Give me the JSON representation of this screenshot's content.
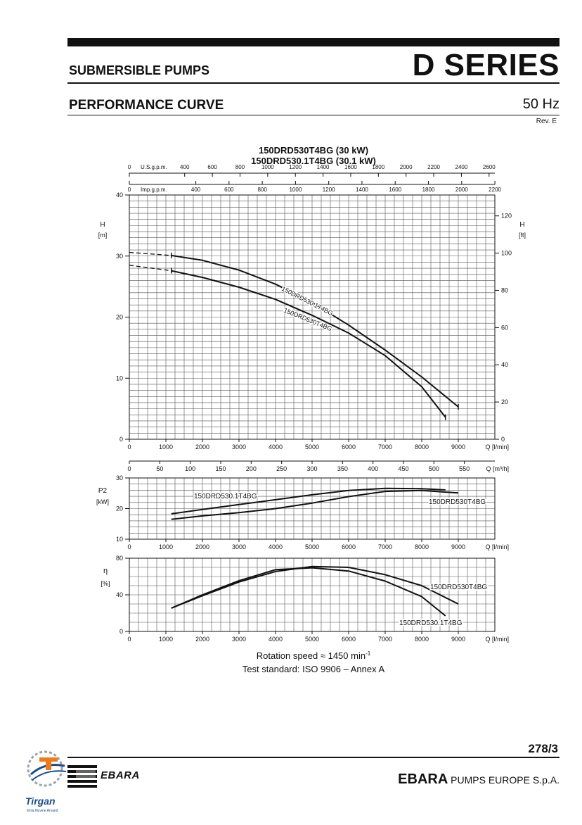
{
  "header": {
    "series": "D SERIES",
    "product_group": "SUBMERSIBLE PUMPS",
    "section": "PERFORMANCE CURVE",
    "frequency": "50 Hz",
    "revision": "Rev. E"
  },
  "chart_data": {
    "type": "line",
    "title_lines": [
      "150DRD530T4BG (30 kW)",
      "150DRD530.1T4BG (30.1 kW)"
    ],
    "top_axes": {
      "us_gpm_label": "U.S.g.p.m.",
      "us_gpm_ticks": [
        0,
        400,
        600,
        800,
        1000,
        1200,
        1400,
        1600,
        1800,
        2000,
        2200,
        2400,
        2600
      ],
      "us_gpm_first_label": "0",
      "imp_gpm_label": "Imp.g.p.m.",
      "imp_gpm_ticks": [
        0,
        400,
        600,
        800,
        1000,
        1200,
        1400,
        1600,
        1800,
        2000,
        2200
      ],
      "imp_gpm_first_label": "0"
    },
    "flow_axis": {
      "label": "Q [l/min]",
      "range": [
        0,
        10000
      ],
      "ticks": [
        0,
        1000,
        2000,
        3000,
        4000,
        5000,
        6000,
        7000,
        8000,
        9000
      ]
    },
    "m3h_axis": {
      "label": "Q [m³/h]",
      "ticks": [
        0,
        50,
        100,
        150,
        200,
        250,
        300,
        350,
        400,
        450,
        500,
        550
      ]
    },
    "head_panel": {
      "ylabel_left": [
        "H",
        "[m]"
      ],
      "ylabel_right": [
        "H",
        "[ft]"
      ],
      "ylim": [
        0,
        40
      ],
      "yticks": [
        0,
        10,
        20,
        30,
        40
      ],
      "ft_ticks": [
        0,
        20,
        40,
        60,
        80,
        100,
        120
      ],
      "series": [
        {
          "name": "150DRD530.1T4BG",
          "dashed": [
            [
              0,
              30.6
            ],
            [
              1150,
              30.1
            ]
          ],
          "points": [
            [
              1150,
              30.1
            ],
            [
              2000,
              29.3
            ],
            [
              3000,
              27.7
            ],
            [
              4000,
              25.4
            ],
            [
              5000,
              22.4
            ],
            [
              6000,
              18.7
            ],
            [
              7000,
              14.6
            ],
            [
              8000,
              10.2
            ],
            [
              9000,
              5.3
            ]
          ]
        },
        {
          "name": "150DRD530T4BG",
          "dashed": [
            [
              0,
              28.5
            ],
            [
              1150,
              27.6
            ]
          ],
          "points": [
            [
              1150,
              27.6
            ],
            [
              2000,
              26.5
            ],
            [
              3000,
              24.9
            ],
            [
              4000,
              22.9
            ],
            [
              5000,
              20.3
            ],
            [
              6000,
              17.4
            ],
            [
              7000,
              13.7
            ],
            [
              8000,
              8.6
            ],
            [
              8650,
              3.6
            ]
          ]
        }
      ]
    },
    "power_panel": {
      "ylabel": [
        "P2",
        "[kW]"
      ],
      "ylim": [
        10,
        30
      ],
      "yticks": [
        10,
        20,
        30
      ],
      "series": [
        {
          "name": "150DRD530.1T4BG",
          "points": [
            [
              1150,
              18.3
            ],
            [
              2000,
              19.7
            ],
            [
              3000,
              21.3
            ],
            [
              4000,
              22.9
            ],
            [
              5000,
              24.5
            ],
            [
              6000,
              25.9
            ],
            [
              7000,
              26.6
            ],
            [
              8000,
              26.5
            ],
            [
              8650,
              26.1
            ]
          ]
        },
        {
          "name": "150DRD530T4BG",
          "points": [
            [
              1150,
              16.5
            ],
            [
              2000,
              17.6
            ],
            [
              3000,
              18.7
            ],
            [
              4000,
              20.0
            ],
            [
              5000,
              21.8
            ],
            [
              6000,
              23.9
            ],
            [
              7000,
              25.6
            ],
            [
              8000,
              25.9
            ],
            [
              9000,
              25.1
            ]
          ]
        }
      ]
    },
    "efficiency_panel": {
      "ylabel": [
        "η",
        "[%]"
      ],
      "ylim": [
        0,
        80
      ],
      "yticks": [
        0,
        40,
        80
      ],
      "series": [
        {
          "name": "150DRD530T4BG",
          "points": [
            [
              1150,
              25.5
            ],
            [
              2000,
              39
            ],
            [
              3000,
              54
            ],
            [
              4000,
              65.5
            ],
            [
              5000,
              71
            ],
            [
              6000,
              70
            ],
            [
              7000,
              62
            ],
            [
              8000,
              50
            ],
            [
              9000,
              30
            ]
          ]
        },
        {
          "name": "150DRD530.1T4BG",
          "points": [
            [
              1150,
              25.5
            ],
            [
              2000,
              40
            ],
            [
              3000,
              55.5
            ],
            [
              4000,
              67.5
            ],
            [
              5000,
              69.5
            ],
            [
              6000,
              66
            ],
            [
              7000,
              55
            ],
            [
              8000,
              38
            ],
            [
              8650,
              17
            ]
          ]
        }
      ]
    },
    "notes": {
      "rotation_text": "Rotation speed ≈ 1450 min",
      "rotation_sup": "-1",
      "standard": "Test standard: ISO 9906 – Annex A"
    }
  },
  "footer": {
    "page_number": "278/3",
    "company_bold": "EBARA",
    "company_rest": " PUMPS EUROPE S.p.A.",
    "logo_text": "EBARA",
    "tirgan_name": "Tirgan",
    "tirgan_tagline": "Ilmia Novine Arvand"
  }
}
